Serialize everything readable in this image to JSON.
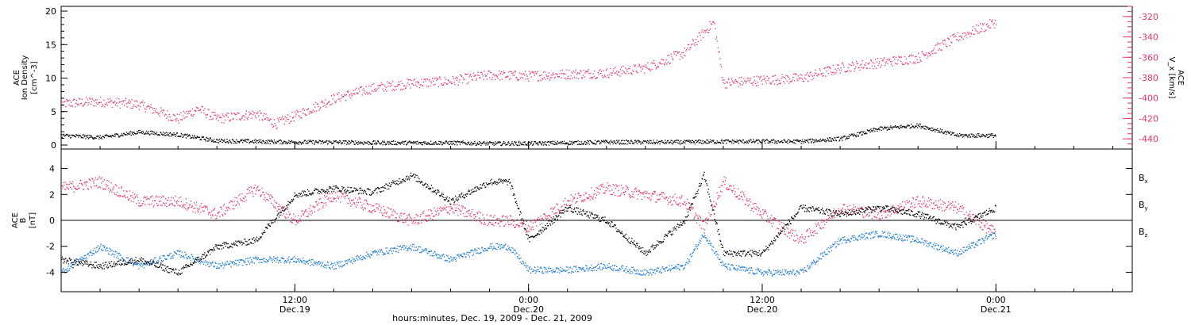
{
  "chart_data": [
    {
      "type": "scatter",
      "panel": "top",
      "ylabel_left": [
        "ACE",
        "Ion Density",
        "[cm^-3]"
      ],
      "ylabel_right": [
        "ACE",
        "V_x [km/s]"
      ],
      "ylim_left": [
        0,
        20
      ],
      "ylim_right": [
        -450,
        -310
      ],
      "left_ticks": [
        0,
        5,
        10,
        15,
        20
      ],
      "right_ticks": [
        -440,
        -420,
        -400,
        -380,
        -360,
        -340,
        -320
      ],
      "grid": false,
      "colors": {
        "density": "#000000",
        "vx": "#e8336b"
      },
      "series": [
        {
          "name": "Ion Density",
          "axis": "left",
          "color": "#000000",
          "x_hours": [
            0,
            2,
            4,
            6,
            8,
            10,
            12,
            14,
            16,
            18,
            20,
            22,
            24,
            26,
            28,
            30,
            32,
            34,
            36,
            38,
            40,
            42,
            44,
            46,
            48
          ],
          "values": [
            1.5,
            1.2,
            2.0,
            1.6,
            0.7,
            0.6,
            0.5,
            0.5,
            0.4,
            0.4,
            0.4,
            0.3,
            0.3,
            0.4,
            0.5,
            0.5,
            0.5,
            0.6,
            0.6,
            0.6,
            1.0,
            2.5,
            3.0,
            1.5,
            1.5
          ]
        },
        {
          "name": "Vx",
          "axis": "right",
          "color": "#e8336b",
          "x_hours": [
            0,
            2,
            4,
            6,
            7,
            8,
            10,
            11,
            12,
            14,
            16,
            18,
            20,
            22,
            24,
            26,
            28,
            30,
            32,
            33.5,
            34,
            36,
            38,
            40,
            42,
            44,
            46,
            48
          ],
          "values": [
            -405,
            -403,
            -406,
            -420,
            -410,
            -420,
            -415,
            -425,
            -417,
            -400,
            -390,
            -385,
            -383,
            -377,
            -378,
            -376,
            -375,
            -370,
            -355,
            -325,
            -385,
            -382,
            -380,
            -370,
            -365,
            -360,
            -340,
            -325
          ]
        }
      ]
    },
    {
      "type": "scatter",
      "panel": "bottom",
      "ylabel": [
        "ACE",
        "B",
        "[nT]"
      ],
      "ylim": [
        -5.5,
        5.5
      ],
      "ticks": [
        -4,
        -2,
        0,
        2,
        4
      ],
      "grid": false,
      "legend_placement": "right",
      "legend": [
        {
          "label": "B",
          "sub": "x",
          "color": "#000000"
        },
        {
          "label": "B",
          "sub": "y",
          "color": "#1a7ad4"
        },
        {
          "label": "B",
          "sub": "z",
          "color": "#e8336b"
        }
      ],
      "x_ticks": [
        {
          "hour": 12,
          "time": "12:00",
          "date": "Dec.19"
        },
        {
          "hour": 24,
          "time": "0:00",
          "date": "Dec.20"
        },
        {
          "hour": 36,
          "time": "12:00",
          "date": "Dec.20"
        },
        {
          "hour": 48,
          "time": "0:00",
          "date": "Dec.21"
        }
      ],
      "xlabel": "hours:minutes, Dec. 19, 2009 - Dec. 21, 2009",
      "xlim_hours": [
        0,
        55
      ],
      "series": [
        {
          "name": "Bx",
          "color": "#000000",
          "x_hours": [
            0,
            2,
            4,
            6,
            8,
            10,
            12,
            14,
            16,
            18,
            20,
            22,
            23,
            24,
            26,
            28,
            30,
            32,
            33,
            34,
            36,
            38,
            40,
            42,
            44,
            46,
            48
          ],
          "values": [
            -3.0,
            -3.5,
            -3.0,
            -4.0,
            -2.0,
            -1.5,
            2.0,
            2.5,
            2.2,
            3.5,
            1.5,
            3.0,
            3.0,
            -1.5,
            1.0,
            0.0,
            -2.5,
            0.0,
            3.5,
            -2.5,
            -2.5,
            1.0,
            0.5,
            1.0,
            0.5,
            -0.5,
            1.0
          ]
        },
        {
          "name": "By",
          "color": "#1a7ad4",
          "x_hours": [
            0,
            2,
            4,
            6,
            8,
            10,
            12,
            14,
            16,
            18,
            20,
            22,
            23,
            24,
            26,
            28,
            30,
            32,
            33,
            34,
            36,
            38,
            40,
            42,
            44,
            46,
            48
          ],
          "values": [
            -4.0,
            -2.0,
            -3.5,
            -2.5,
            -3.5,
            -3.0,
            -3.0,
            -3.5,
            -2.5,
            -2.0,
            -3.0,
            -2.0,
            -2.0,
            -3.8,
            -3.8,
            -3.5,
            -4.0,
            -3.5,
            -1.0,
            -3.5,
            -4.0,
            -4.0,
            -1.5,
            -1.0,
            -1.5,
            -2.5,
            -1.0
          ]
        },
        {
          "name": "Bz",
          "color": "#e8336b",
          "x_hours": [
            0,
            2,
            4,
            6,
            8,
            10,
            12,
            14,
            16,
            18,
            20,
            22,
            23,
            24,
            26,
            28,
            30,
            32,
            33,
            34,
            36,
            38,
            40,
            42,
            44,
            46,
            48
          ],
          "values": [
            2.5,
            3.0,
            1.5,
            1.5,
            0.5,
            2.5,
            0.0,
            2.0,
            1.0,
            0.0,
            1.0,
            0.0,
            0.0,
            -0.5,
            1.5,
            2.5,
            2.0,
            1.5,
            -0.5,
            3.0,
            0.5,
            -1.5,
            1.0,
            0.5,
            1.5,
            1.0,
            -1.0
          ]
        }
      ]
    }
  ]
}
